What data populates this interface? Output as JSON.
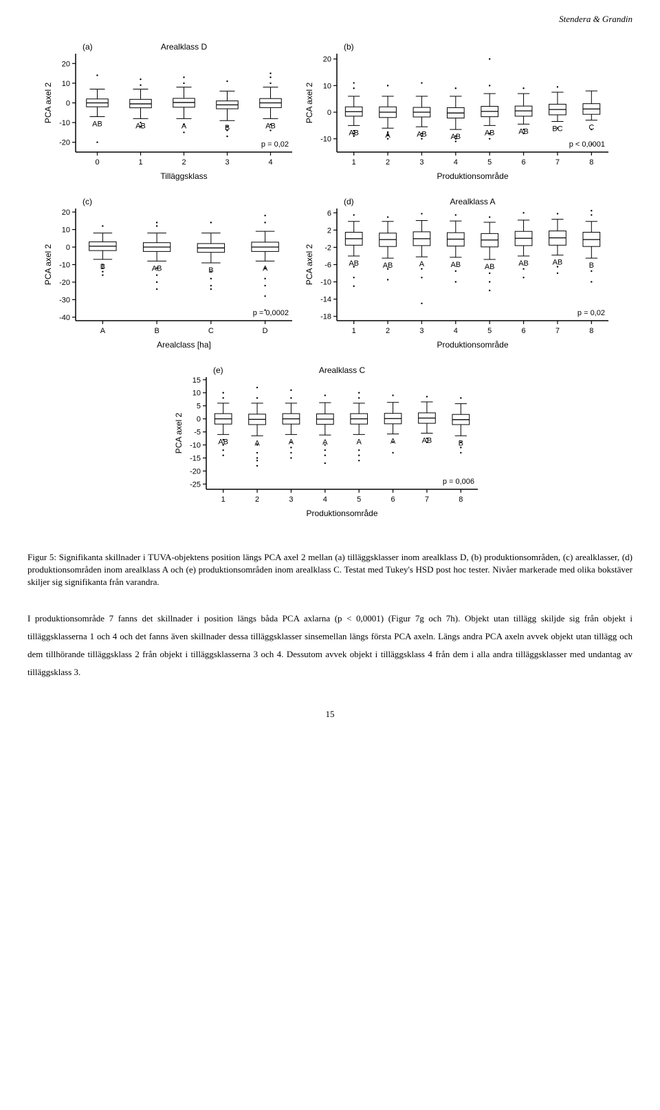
{
  "header": "Stendera & Grandin",
  "charts": {
    "a": {
      "panel_label": "(a)",
      "panel_title": "Arealklass D",
      "p_label": "p = 0,02",
      "ylabel": "PCA axel 2",
      "xlabel": "Tilläggsklass",
      "xcats": [
        "0",
        "1",
        "2",
        "3",
        "4"
      ],
      "yticks": [
        -20,
        -10,
        0,
        10,
        20
      ],
      "ylim": [
        -25,
        25
      ],
      "boxes": [
        {
          "q1": -2.0,
          "med": 0.0,
          "q3": 2.0,
          "wlo": -7,
          "whi": 7,
          "out": [
            -20,
            14
          ],
          "lab": "AB"
        },
        {
          "q1": -2.5,
          "med": -0.5,
          "q3": 1.8,
          "wlo": -8,
          "whi": 7,
          "out": [
            -12,
            -10,
            9,
            12
          ],
          "lab": "AB"
        },
        {
          "q1": -2.2,
          "med": 0.2,
          "q3": 2.3,
          "wlo": -8,
          "whi": 8,
          "out": [
            -15,
            -11,
            10,
            13
          ],
          "lab": "A"
        },
        {
          "q1": -3.0,
          "med": -1.0,
          "q3": 1.0,
          "wlo": -9,
          "whi": 6,
          "out": [
            -17,
            -14,
            -12,
            11
          ],
          "lab": "B"
        },
        {
          "q1": -2.4,
          "med": 0.0,
          "q3": 2.2,
          "wlo": -8,
          "whi": 8,
          "out": [
            -14,
            -11,
            10,
            13,
            15
          ],
          "lab": "AB"
        }
      ]
    },
    "b": {
      "panel_label": "(b)",
      "panel_title": "",
      "p_label": "p < 0,0001",
      "ylabel": "PCA axel 2",
      "xlabel": "Produktionsområde",
      "xcats": [
        "1",
        "2",
        "3",
        "4",
        "5",
        "6",
        "7",
        "8"
      ],
      "yticks": [
        -10,
        0,
        10,
        20
      ],
      "ylim": [
        -15,
        22
      ],
      "boxes": [
        {
          "q1": -1.5,
          "med": 0.2,
          "q3": 2.0,
          "wlo": -5,
          "whi": 6,
          "out": [
            -9,
            -8,
            -7,
            9,
            11
          ],
          "lab": "AB"
        },
        {
          "q1": -2.0,
          "med": 0.0,
          "q3": 2.0,
          "wlo": -6,
          "whi": 6,
          "out": [
            -10,
            -8.5,
            -7.5,
            10
          ],
          "lab": "A"
        },
        {
          "q1": -1.8,
          "med": 0.0,
          "q3": 1.8,
          "wlo": -5.5,
          "whi": 6,
          "out": [
            -10,
            -9,
            -8,
            11
          ],
          "lab": "AB"
        },
        {
          "q1": -2.2,
          "med": -0.3,
          "q3": 1.7,
          "wlo": -6.5,
          "whi": 6,
          "out": [
            -11,
            -10,
            -9,
            9
          ],
          "lab": "AB"
        },
        {
          "q1": -1.7,
          "med": 0.3,
          "q3": 2.2,
          "wlo": -5,
          "whi": 7,
          "out": [
            -10,
            -8,
            10,
            20
          ],
          "lab": "AB"
        },
        {
          "q1": -1.5,
          "med": 0.5,
          "q3": 2.3,
          "wlo": -4.5,
          "whi": 7,
          "out": [
            -8,
            -6.5,
            9
          ],
          "lab": "AB"
        },
        {
          "q1": -1.0,
          "med": 1.0,
          "q3": 3.0,
          "wlo": -3.5,
          "whi": 7.5,
          "out": [
            -6,
            9.5
          ],
          "lab": "BC"
        },
        {
          "q1": -0.8,
          "med": 1.2,
          "q3": 3.2,
          "wlo": -3,
          "whi": 8,
          "out": [
            -12,
            -6.5
          ],
          "lab": "C"
        }
      ]
    },
    "c": {
      "panel_label": "(c)",
      "panel_title": "",
      "p_label": "p = 0,0002",
      "ylabel": "PCA axel 2",
      "xlabel": "Arealclass [ha]",
      "xcats": [
        "A",
        "B",
        "C",
        "D"
      ],
      "yticks": [
        -40,
        -30,
        -20,
        -10,
        0,
        10,
        20
      ],
      "ylim": [
        -42,
        22
      ],
      "boxes": [
        {
          "q1": -2.0,
          "med": 0.5,
          "q3": 3.0,
          "wlo": -7,
          "whi": 8,
          "out": [
            -16,
            -14,
            -12,
            -10,
            12
          ],
          "lab": "B"
        },
        {
          "q1": -2.5,
          "med": 0.0,
          "q3": 2.5,
          "wlo": -8,
          "whi": 8,
          "out": [
            -24,
            -20,
            -16,
            -12,
            12,
            14
          ],
          "lab": "AB"
        },
        {
          "q1": -3.0,
          "med": -0.5,
          "q3": 2.0,
          "wlo": -9,
          "whi": 8,
          "out": [
            -24,
            -22,
            -18,
            -14,
            14
          ],
          "lab": "B"
        },
        {
          "q1": -2.5,
          "med": 0.0,
          "q3": 2.8,
          "wlo": -8,
          "whi": 9,
          "out": [
            -36,
            -28,
            -22,
            -18,
            -12,
            14,
            18
          ],
          "lab": "A"
        }
      ]
    },
    "d": {
      "panel_label": "(d)",
      "panel_title": "Arealklass A",
      "p_label": "p = 0,02",
      "ylabel": "PCA axel 2",
      "xlabel": "Produktionsområde",
      "xcats": [
        "1",
        "2",
        "3",
        "4",
        "5",
        "6",
        "7",
        "8"
      ],
      "yticks": [
        -18,
        -14,
        -10,
        -6,
        -2,
        2,
        6
      ],
      "ylim": [
        -19,
        7
      ],
      "boxes": [
        {
          "q1": -1.5,
          "med": 0.0,
          "q3": 1.5,
          "wlo": -4,
          "whi": 4,
          "out": [
            -11,
            -9,
            -6.5,
            5.5
          ],
          "lab": "AB"
        },
        {
          "q1": -1.8,
          "med": -0.2,
          "q3": 1.3,
          "wlo": -4.5,
          "whi": 4,
          "out": [
            -9.5,
            -7,
            5
          ],
          "lab": "AB"
        },
        {
          "q1": -1.6,
          "med": 0.0,
          "q3": 1.6,
          "wlo": -4.2,
          "whi": 4.2,
          "out": [
            -15,
            -9,
            -7,
            5.8
          ],
          "lab": "A"
        },
        {
          "q1": -1.7,
          "med": -0.1,
          "q3": 1.4,
          "wlo": -4.3,
          "whi": 4.1,
          "out": [
            -10,
            -7.5,
            5.5
          ],
          "lab": "AB"
        },
        {
          "q1": -1.9,
          "med": -0.3,
          "q3": 1.2,
          "wlo": -4.8,
          "whi": 3.8,
          "out": [
            -12,
            -10,
            -8,
            5
          ],
          "lab": "AB"
        },
        {
          "q1": -1.6,
          "med": 0.1,
          "q3": 1.7,
          "wlo": -4,
          "whi": 4.3,
          "out": [
            -9,
            -7,
            6
          ],
          "lab": "AB"
        },
        {
          "q1": -1.5,
          "med": 0.2,
          "q3": 1.8,
          "wlo": -3.8,
          "whi": 4.5,
          "out": [
            -8,
            -6.5,
            5.8
          ],
          "lab": "AB"
        },
        {
          "q1": -1.8,
          "med": -0.2,
          "q3": 1.5,
          "wlo": -4.5,
          "whi": 4,
          "out": [
            -10,
            -7.5,
            5.5,
            6.5
          ],
          "lab": "B"
        }
      ]
    },
    "e": {
      "panel_label": "(e)",
      "panel_title": "Arealklass C",
      "p_label": "p = 0,006",
      "ylabel": "PCA axel 2",
      "xlabel": "Produktionsområde",
      "xcats": [
        "1",
        "2",
        "3",
        "4",
        "5",
        "6",
        "7",
        "8"
      ],
      "yticks": [
        -25,
        -20,
        -15,
        -10,
        -5,
        0,
        5,
        10,
        15
      ],
      "ylim": [
        -27,
        16
      ],
      "boxes": [
        {
          "q1": -2.0,
          "med": 0.0,
          "q3": 2.0,
          "wlo": -6,
          "whi": 6,
          "out": [
            -14,
            -12,
            -10,
            -8,
            8,
            10
          ],
          "lab": "AB"
        },
        {
          "q1": -2.2,
          "med": -0.2,
          "q3": 1.8,
          "wlo": -6.5,
          "whi": 6,
          "out": [
            -18,
            -16,
            -15,
            -13,
            -10,
            8,
            12
          ],
          "lab": "A"
        },
        {
          "q1": -2.0,
          "med": 0.0,
          "q3": 2.0,
          "wlo": -6,
          "whi": 6,
          "out": [
            -15,
            -13,
            -11,
            -9,
            8,
            11
          ],
          "lab": "A"
        },
        {
          "q1": -2.1,
          "med": -0.1,
          "q3": 1.9,
          "wlo": -6.2,
          "whi": 6.2,
          "out": [
            -17,
            -14,
            -12,
            -10,
            9
          ],
          "lab": "A"
        },
        {
          "q1": -2.0,
          "med": 0.0,
          "q3": 2.0,
          "wlo": -6,
          "whi": 6,
          "out": [
            -16,
            -14,
            -12,
            8,
            10
          ],
          "lab": "A"
        },
        {
          "q1": -1.9,
          "med": 0.1,
          "q3": 2.1,
          "wlo": -5.8,
          "whi": 6.3,
          "out": [
            -13,
            -9,
            9
          ],
          "lab": "A"
        },
        {
          "q1": -1.7,
          "med": 0.3,
          "q3": 2.3,
          "wlo": -5.5,
          "whi": 6.5,
          "out": [
            -9,
            -7.5,
            8.5
          ],
          "lab": "AB"
        },
        {
          "q1": -2.2,
          "med": -0.3,
          "q3": 1.7,
          "wlo": -6.5,
          "whi": 5.8,
          "out": [
            -13,
            -11,
            -9,
            8
          ],
          "lab": "B"
        }
      ]
    }
  },
  "caption": "Figur 5: Signifikanta skillnader i TUVA-objektens position längs PCA axel 2 mellan (a) tilläggsklasser inom arealklass D, (b) produktionsområden, (c) arealklasser, (d) produktionsområden inom arealklass A och (e) produktionsområden inom arealklass C. Testat med Tukey's HSD post hoc tester. Nivåer markerade med olika bokstäver skiljer sig signifikanta från varandra.",
  "body": "I produktionsområde 7 fanns det skillnader i position längs båda PCA axlarna (p < 0,0001) (Figur 7g och 7h). Objekt utan tillägg skiljde sig från objekt i tilläggsklasserna 1 och 4 och det fanns även skillnader dessa tilläggsklasser sinsemellan längs första PCA axeln. Längs andra PCA axeln avvek objekt utan tillägg och dem tillhörande tilläggsklass 2 från objekt i tilläggsklasserna 3 och 4. Dessutom avvek objekt i tilläggsklass 4 från dem i alla andra tilläggsklasser med undantag av tilläggsklass 3.",
  "pagenum": "15",
  "style": {
    "axis_color": "#000000",
    "box_stroke": "#000000",
    "box_fill": "none",
    "outlier_fill": "#000000",
    "font_axis": 11,
    "font_label": 12,
    "font_panel": 12,
    "tick_len": 5
  }
}
